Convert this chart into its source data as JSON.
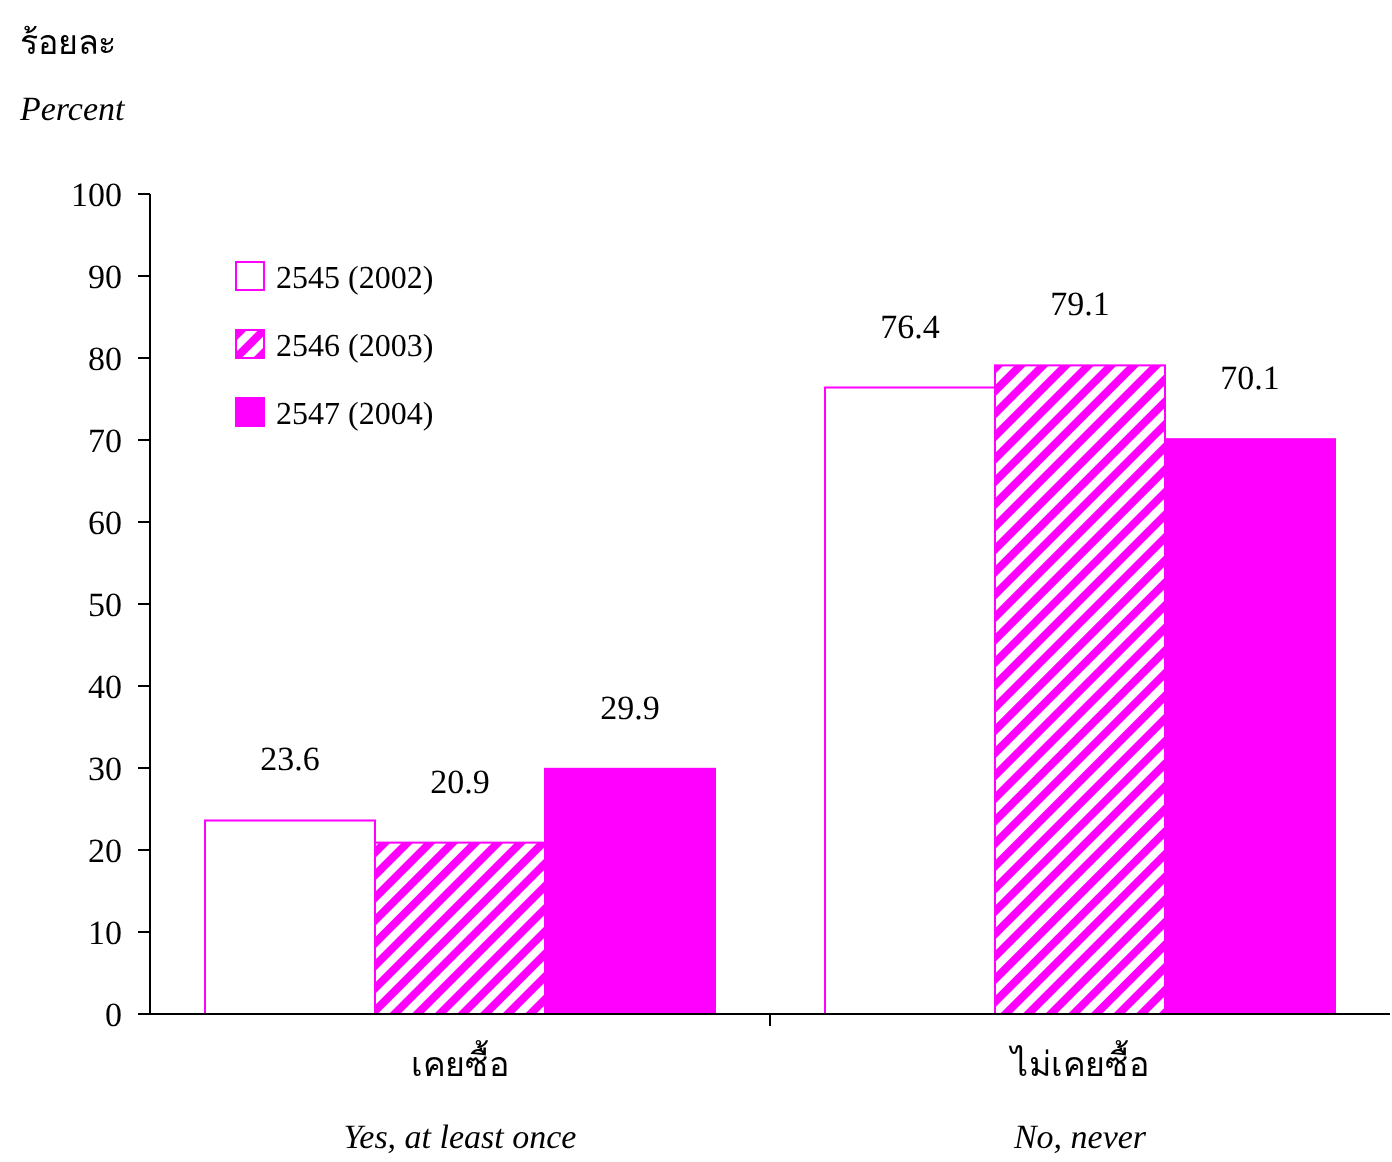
{
  "chart_data": {
    "type": "bar",
    "ylabel": "ร้อยละ\nPercent",
    "categories": [
      "เคยซื้อ\nYes, at least once",
      "ไม่เคยซื้อ\nNo, never"
    ],
    "series": [
      {
        "name": "2545 (2002)",
        "color": "#ff00ff",
        "values": [
          23.6,
          76.4
        ]
      },
      {
        "name": "2546 (2003)",
        "color": "#ff00ff",
        "values": [
          20.9,
          79.1
        ]
      },
      {
        "name": "2547 (2004)",
        "color": "#ff00ff",
        "values": [
          29.9,
          70.1
        ]
      }
    ],
    "ylim": [
      0,
      100
    ],
    "yticks": [
      0,
      10,
      20,
      30,
      40,
      50,
      60,
      70,
      80,
      90,
      100
    ],
    "data_labels": true,
    "legend": "top left",
    "grid": false
  }
}
